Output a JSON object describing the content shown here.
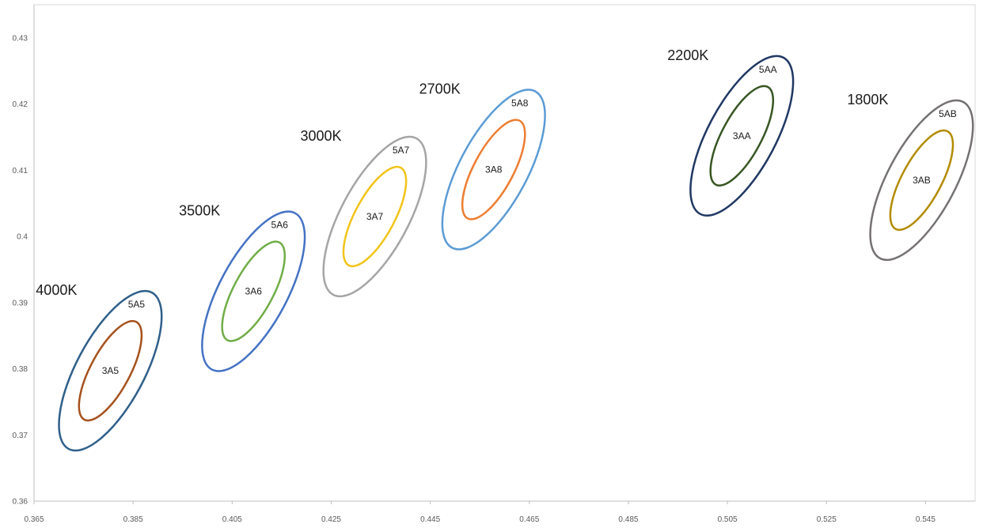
{
  "chart_data": {
    "type": "scatter",
    "title": "",
    "xlabel": "",
    "ylabel": "",
    "xlim": [
      0.365,
      0.555
    ],
    "ylim": [
      0.36,
      0.435
    ],
    "x_ticks": [
      {
        "value": 0.365,
        "label": "0.365"
      },
      {
        "value": 0.385,
        "label": "0.385"
      },
      {
        "value": 0.405,
        "label": "0.405"
      },
      {
        "value": 0.425,
        "label": "0.425"
      },
      {
        "value": 0.445,
        "label": "0.445"
      },
      {
        "value": 0.465,
        "label": "0.465"
      },
      {
        "value": 0.485,
        "label": "0.485"
      },
      {
        "value": 0.505,
        "label": "0.505"
      },
      {
        "value": 0.525,
        "label": "0.525"
      },
      {
        "value": 0.545,
        "label": "0.545"
      }
    ],
    "y_ticks": [
      {
        "value": 0.36,
        "label": "0.36"
      },
      {
        "value": 0.37,
        "label": "0.37"
      },
      {
        "value": 0.38,
        "label": "0.38"
      },
      {
        "value": 0.39,
        "label": "0.39"
      },
      {
        "value": 0.4,
        "label": "0.4"
      },
      {
        "value": 0.41,
        "label": "0.41"
      },
      {
        "value": 0.42,
        "label": "0.42"
      },
      {
        "value": 0.43,
        "label": "0.43"
      }
    ],
    "grid": false,
    "legend": "none",
    "series": [
      {
        "cct": "4000K",
        "center": [
          0.3804,
          0.3797
        ],
        "outer_label": "5A5",
        "inner_label": "3A5",
        "outer_color": "#2f5f8a",
        "inner_color": "#a5511d"
      },
      {
        "cct": "3500K",
        "center": [
          0.4093,
          0.3917
        ],
        "outer_label": "5A6",
        "inner_label": "3A6",
        "outer_color": "#4472c4",
        "inner_color": "#70ad47"
      },
      {
        "cct": "3000K",
        "center": [
          0.4338,
          0.403
        ],
        "outer_label": "5A7",
        "inner_label": "3A7",
        "outer_color": "#a5a5a5",
        "inner_color": "#f2c418"
      },
      {
        "cct": "2700K",
        "center": [
          0.4578,
          0.4101
        ],
        "outer_label": "5A8",
        "inner_label": "3A8",
        "outer_color": "#5b9bd5",
        "inner_color": "#ed7d31"
      },
      {
        "cct": "2200K",
        "center": [
          0.5079,
          0.4152
        ],
        "outer_label": "5AA",
        "inner_label": "3AA",
        "outer_color": "#203864",
        "inner_color": "#375623"
      },
      {
        "cct": "1800K",
        "center": [
          0.5442,
          0.4085
        ],
        "outer_label": "5AB",
        "inner_label": "3AB",
        "outer_color": "#757171",
        "inner_color": "#b38b00"
      }
    ]
  }
}
